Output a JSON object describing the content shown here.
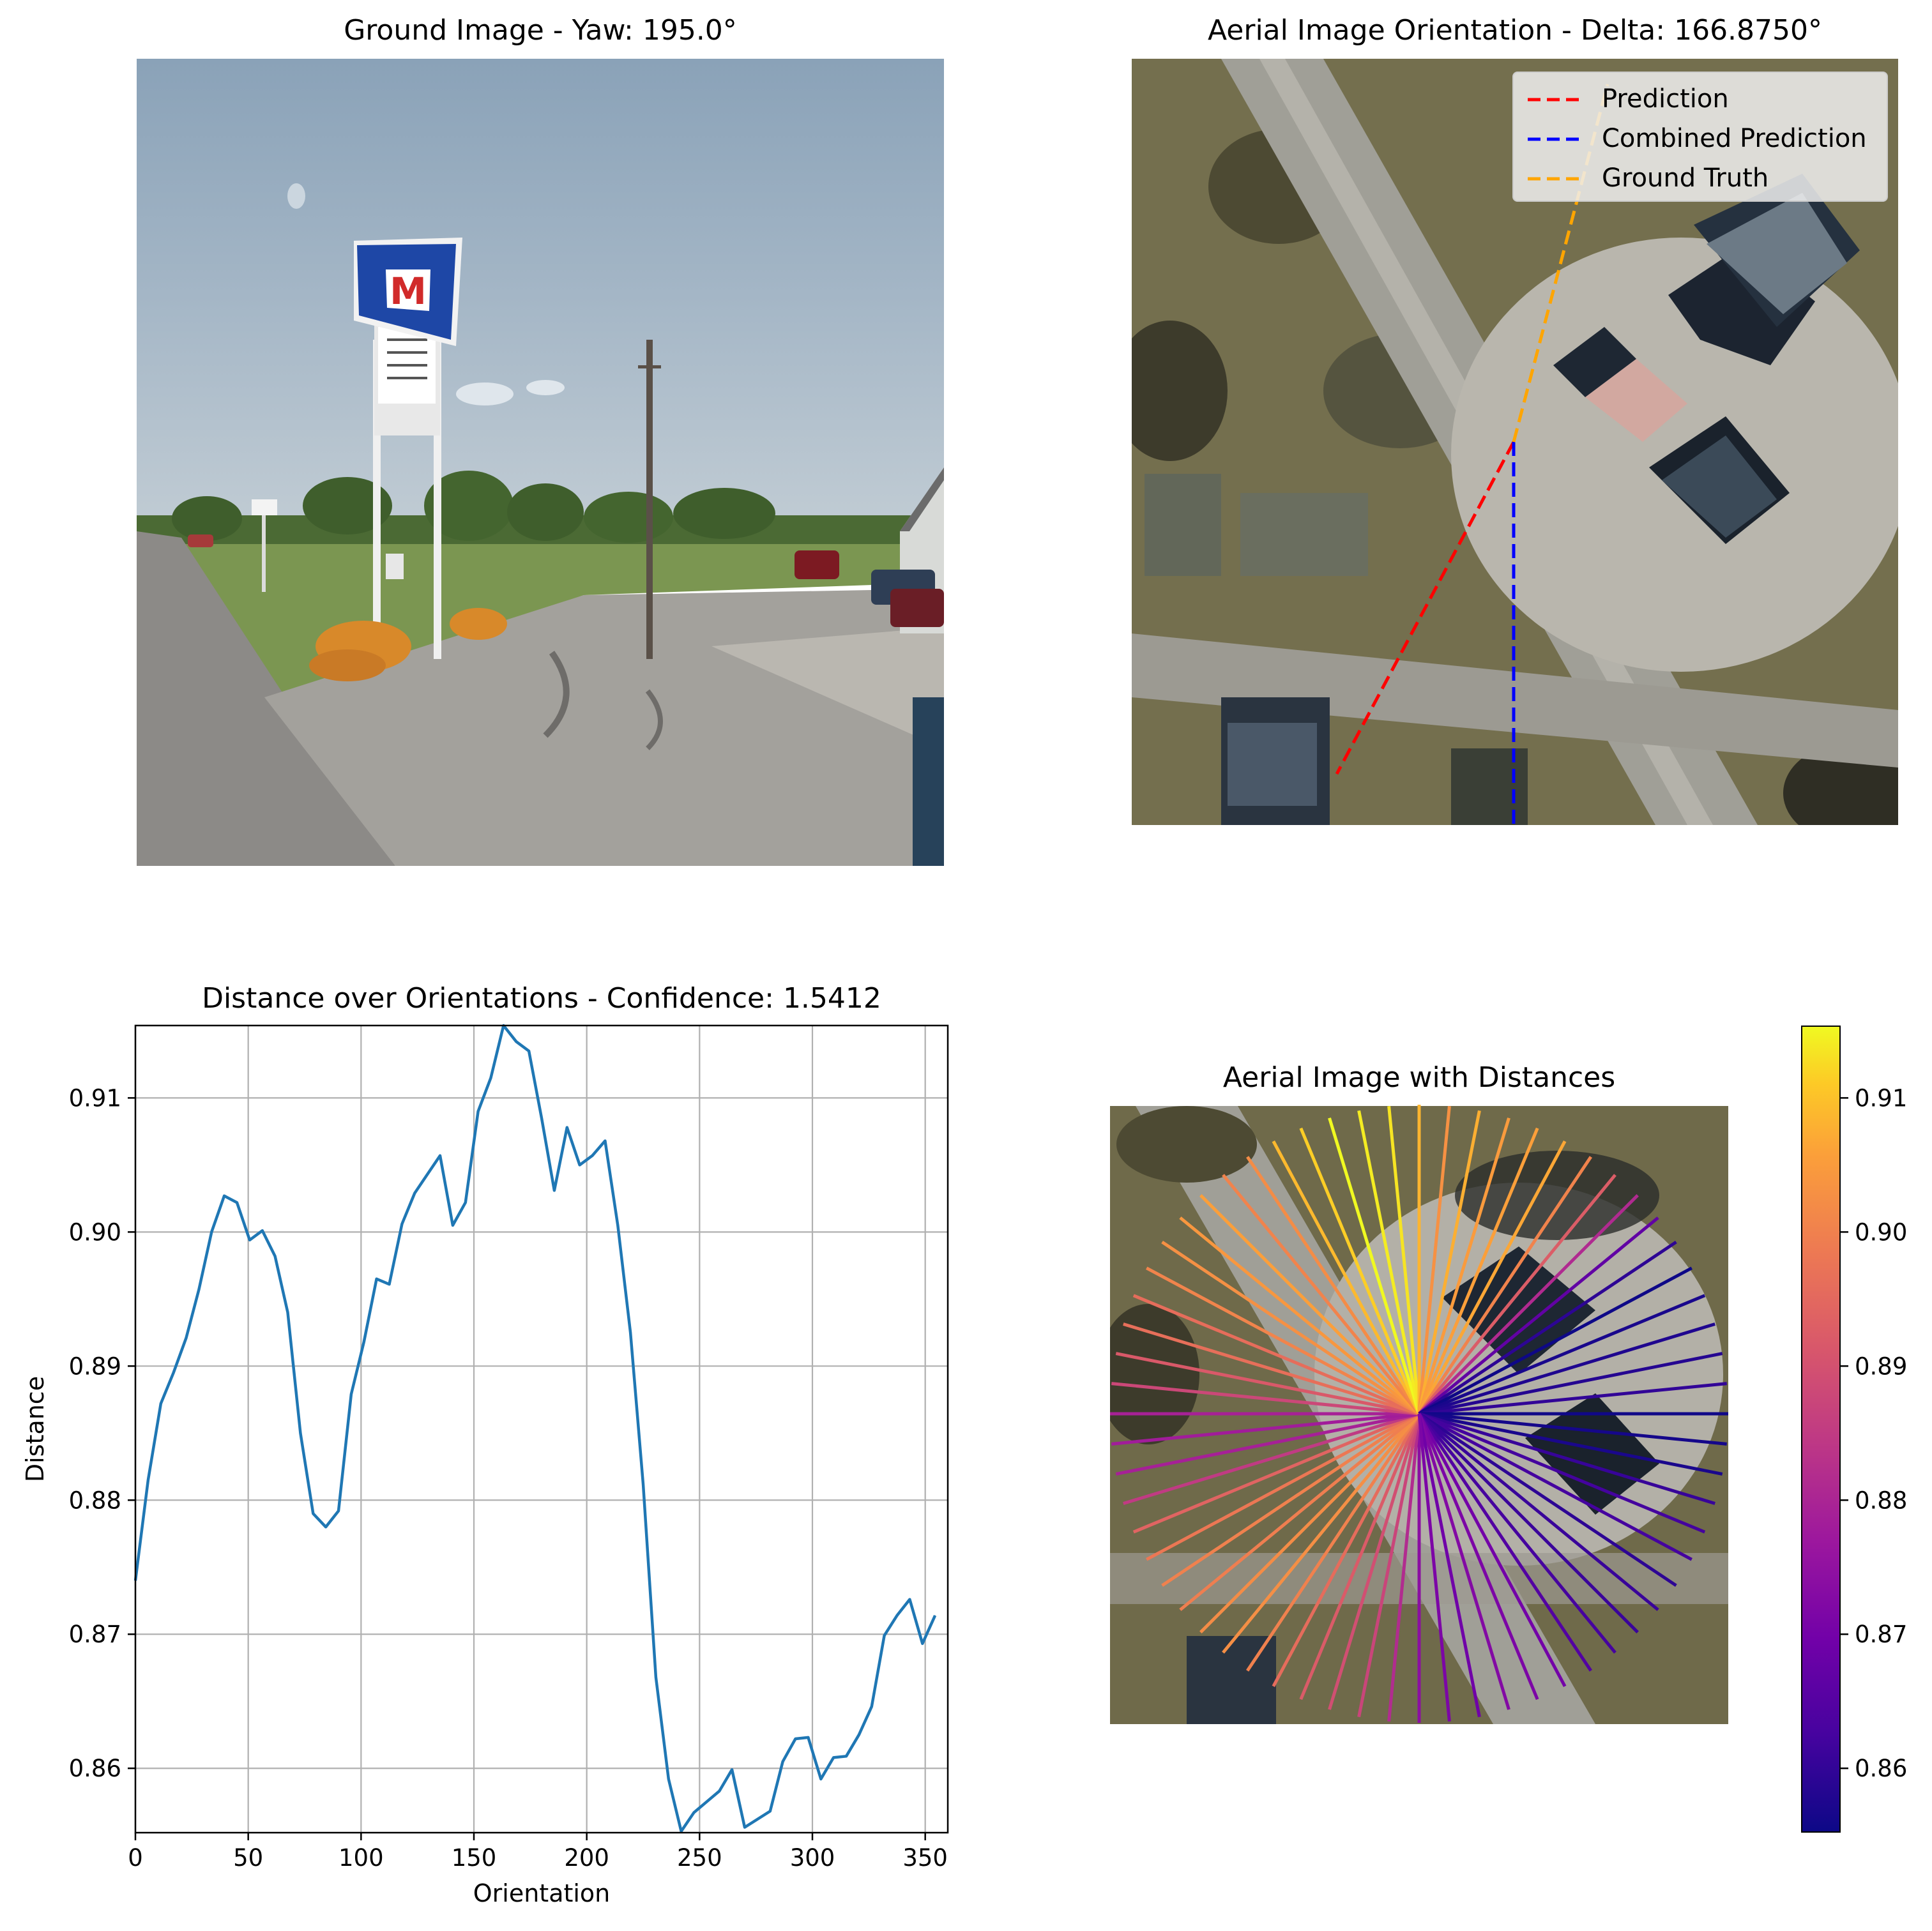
{
  "panels": {
    "ground": {
      "title": "Ground Image - Yaw: 195.0°"
    },
    "aerial": {
      "title": "Aerial Image Orientation - Delta: 166.8750°",
      "legend": [
        {
          "label": "Prediction",
          "color": "#ff0000"
        },
        {
          "label": "Combined Prediction",
          "color": "#0000ff"
        },
        {
          "label": "Ground Truth",
          "color": "#ffa500"
        }
      ]
    },
    "distance": {
      "title": "Distance over Orientations - Confidence: 1.5412"
    },
    "distances_map": {
      "title": "Aerial Image with Distances"
    }
  },
  "chart_data": [
    {
      "type": "line",
      "title": "Distance over Orientations - Confidence: 1.5412",
      "xlabel": "Orientation",
      "ylabel": "Distance",
      "xlim": [
        0,
        360
      ],
      "ylim": [
        0.8552,
        0.9154
      ],
      "xticks": [
        0,
        50,
        100,
        150,
        200,
        250,
        300,
        350
      ],
      "yticks": [
        0.86,
        0.87,
        0.88,
        0.89,
        0.9,
        0.91
      ],
      "ytick_labels": [
        "0.86",
        "0.87",
        "0.88",
        "0.89",
        "0.90",
        "0.91"
      ],
      "grid": true,
      "color": "#1f77b4",
      "x": [
        0,
        5.625,
        11.25,
        16.875,
        22.5,
        28.125,
        33.75,
        39.375,
        45,
        50.625,
        56.25,
        61.875,
        67.5,
        73.125,
        78.75,
        84.375,
        90,
        95.625,
        101.25,
        106.875,
        112.5,
        118.125,
        123.75,
        129.375,
        135,
        140.625,
        146.25,
        151.875,
        157.5,
        163.125,
        168.75,
        174.375,
        180,
        185.625,
        191.25,
        196.875,
        202.5,
        208.125,
        213.75,
        219.375,
        225,
        230.625,
        236.25,
        241.875,
        247.5,
        253.125,
        258.75,
        264.375,
        270,
        275.625,
        281.25,
        286.875,
        292.5,
        298.125,
        303.75,
        309.375,
        315,
        320.625,
        326.25,
        331.875,
        337.5,
        343.125,
        348.75,
        354.375
      ],
      "y": [
        0.874,
        0.8815,
        0.8872,
        0.8895,
        0.8921,
        0.8957,
        0.9,
        0.9027,
        0.9022,
        0.8994,
        0.9001,
        0.8982,
        0.894,
        0.885,
        0.879,
        0.878,
        0.8792,
        0.8879,
        0.8918,
        0.8965,
        0.8961,
        0.9006,
        0.9029,
        0.9043,
        0.9057,
        0.9005,
        0.9022,
        0.909,
        0.9115,
        0.9154,
        0.9142,
        0.9135,
        0.9085,
        0.9031,
        0.9078,
        0.905,
        0.9057,
        0.9068,
        0.9005,
        0.8925,
        0.8812,
        0.8668,
        0.8592,
        0.8553,
        0.8567,
        0.8575,
        0.8583,
        0.8599,
        0.8556,
        0.8562,
        0.8568,
        0.8605,
        0.8622,
        0.8623,
        0.8592,
        0.8608,
        0.8609,
        0.8625,
        0.8646,
        0.8699,
        0.8714,
        0.8726,
        0.8693,
        0.8714
      ]
    },
    {
      "type": "heatmap",
      "title": "Aerial Image with Distances",
      "description_colorbar": "plasma",
      "colorbar_range": [
        0.8552,
        0.9154
      ],
      "colorbar_ticks": [
        0.86,
        0.87,
        0.88,
        0.89,
        0.9,
        0.91
      ],
      "colorbar_tick_labels": [
        "0.86",
        "0.87",
        "0.88",
        "0.89",
        "0.90",
        "0.91"
      ]
    }
  ]
}
